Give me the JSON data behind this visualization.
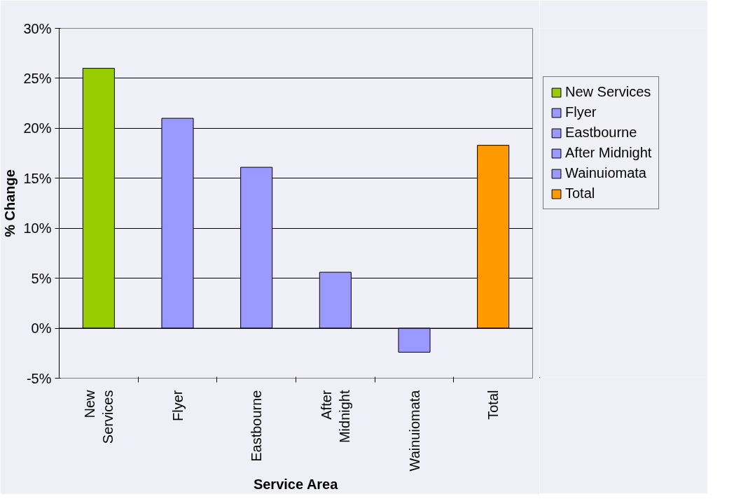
{
  "chart_data": {
    "type": "bar",
    "xlabel": "Service Area",
    "ylabel": "% Change",
    "categories": [
      "New Services",
      "Flyer",
      "Eastbourne",
      "After Midnight",
      "Wainuiomata",
      "Total"
    ],
    "series": [
      {
        "name": "New Services",
        "color": "#99cc00",
        "values": [
          26.0,
          null,
          null,
          null,
          null,
          null
        ]
      },
      {
        "name": "Flyer",
        "color": "#9999ff",
        "values": [
          null,
          21.0,
          null,
          null,
          null,
          null
        ]
      },
      {
        "name": "Eastbourne",
        "color": "#9999ff",
        "values": [
          null,
          null,
          16.1,
          null,
          null,
          null
        ]
      },
      {
        "name": "After Midnight",
        "color": "#9999ff",
        "values": [
          null,
          null,
          null,
          5.6,
          null,
          null
        ]
      },
      {
        "name": "Wainuiomata",
        "color": "#9999ff",
        "values": [
          null,
          null,
          null,
          null,
          -2.4,
          null
        ]
      },
      {
        "name": "Total",
        "color": "#ff9900",
        "values": [
          null,
          null,
          null,
          null,
          null,
          18.3
        ]
      }
    ],
    "ylim": [
      -5,
      30
    ],
    "yticks": [
      {
        "value": -5,
        "label": "-5%"
      },
      {
        "value": 0,
        "label": "0%"
      },
      {
        "value": 5,
        "label": "5%"
      },
      {
        "value": 10,
        "label": "10%"
      },
      {
        "value": 15,
        "label": "15%"
      },
      {
        "value": 20,
        "label": "20%"
      },
      {
        "value": 25,
        "label": "25%"
      },
      {
        "value": 30,
        "label": "30%"
      }
    ],
    "grid": "y",
    "legend": "right"
  }
}
